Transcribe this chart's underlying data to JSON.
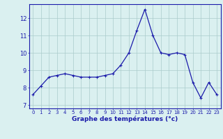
{
  "x": [
    0,
    1,
    2,
    3,
    4,
    5,
    6,
    7,
    8,
    9,
    10,
    11,
    12,
    13,
    14,
    15,
    16,
    17,
    18,
    19,
    20,
    21,
    22,
    23
  ],
  "y": [
    7.6,
    8.1,
    8.6,
    8.7,
    8.8,
    8.7,
    8.6,
    8.6,
    8.6,
    8.7,
    8.8,
    9.3,
    10.0,
    11.3,
    12.5,
    11.0,
    10.0,
    9.9,
    10.0,
    9.9,
    8.3,
    7.4,
    8.3,
    7.6
  ],
  "line_color": "#1a1aaa",
  "marker": "+",
  "marker_size": 3,
  "marker_lw": 0.8,
  "xlabel": "Graphe des températures (°c)",
  "ylabel_ticks": [
    7,
    8,
    9,
    10,
    11,
    12
  ],
  "xtick_labels": [
    "0",
    "1",
    "2",
    "3",
    "4",
    "5",
    "6",
    "7",
    "8",
    "9",
    "10",
    "11",
    "12",
    "13",
    "14",
    "15",
    "16",
    "17",
    "18",
    "19",
    "20",
    "21",
    "22",
    "23"
  ],
  "ylim": [
    6.8,
    12.8
  ],
  "xlim": [
    -0.5,
    23.5
  ],
  "bg_color": "#daf0f0",
  "grid_color": "#aacccc",
  "spine_color": "#1a1aaa",
  "tick_color": "#1a1aaa",
  "label_color": "#1a1aaa",
  "xlabel_fontsize": 6.5,
  "xlabel_fontweight": "bold",
  "ytick_fontsize": 6.0,
  "xtick_fontsize": 5.0,
  "line_width": 0.9
}
